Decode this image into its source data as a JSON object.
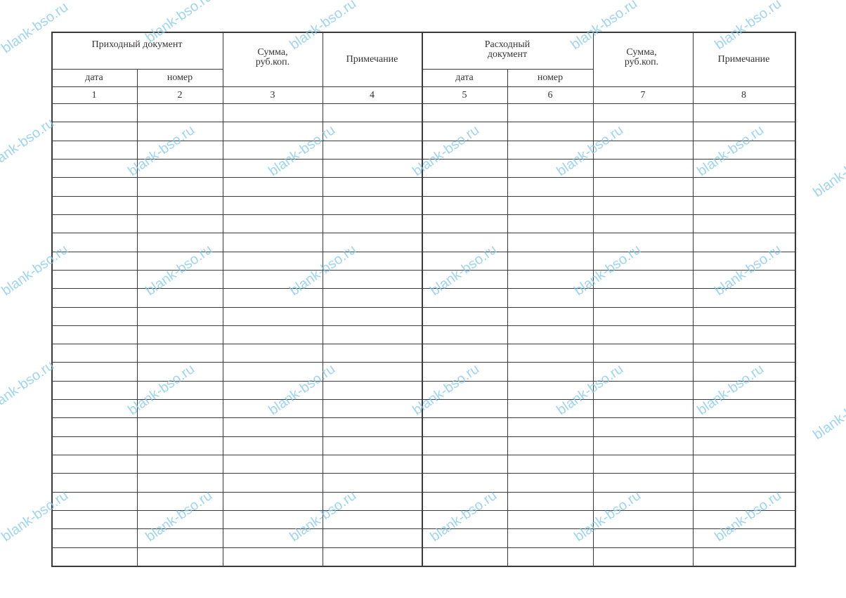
{
  "header": {
    "incoming_doc": "Приходный документ",
    "incoming_date": "дата",
    "incoming_number": "номер",
    "sum_left": "Сумма, руб.коп.",
    "note_left": "Примечание",
    "outgoing_doc": "Расходный документ",
    "outgoing_date": "дата",
    "outgoing_number": "номер",
    "sum_right": "Сумма, руб.коп.",
    "note_right": "Примечание"
  },
  "column_numbers": [
    "1",
    "2",
    "3",
    "4",
    "5",
    "6",
    "7",
    "8"
  ],
  "empty_row_count": 25,
  "watermark": "blank-bso.ru",
  "colors": {
    "lines": "#3a3a3a",
    "watermark": "#7fc8ea"
  }
}
